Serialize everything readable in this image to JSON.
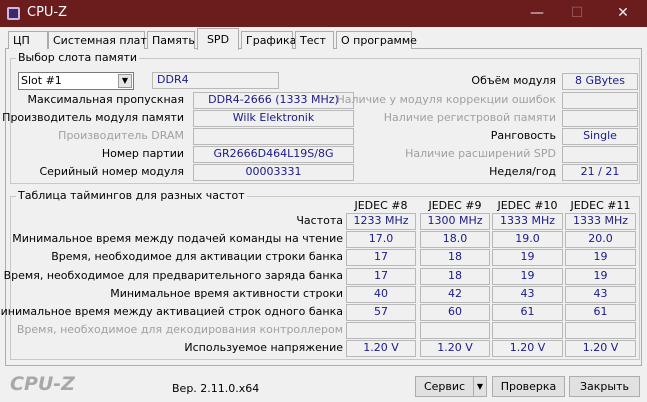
{
  "window": {
    "title": "CPU-Z",
    "minimize": "—",
    "maximize": "☐",
    "close": "✕"
  },
  "tabs": [
    "ЦП",
    "Системная плата",
    "Память",
    "SPD",
    "Графика",
    "Тест",
    "О программе"
  ],
  "active_tab": "SPD",
  "slot_group": {
    "title": "Выбор слота памяти",
    "slot_selected": "Slot #1",
    "memory_type": "DDR4",
    "left": [
      {
        "label": "Максимальная пропускная",
        "value": "DDR4-2666 (1333 MHz)",
        "disabled": false
      },
      {
        "label": "Производитель модуля памяти",
        "value": "Wilk Elektronik",
        "disabled": false
      },
      {
        "label": "Производитель DRAM",
        "value": "",
        "disabled": true
      },
      {
        "label": "Номер партии",
        "value": "GR2666D464L19S/8G",
        "disabled": false
      },
      {
        "label": "Серийный номер модуля",
        "value": "00003331",
        "disabled": false
      }
    ],
    "right": [
      {
        "label": "Объём модуля",
        "value": "8 GBytes",
        "disabled": false
      },
      {
        "label": "Наличие у модуля коррекции ошибок",
        "value": "",
        "disabled": true
      },
      {
        "label": "Наличие регистровой памяти",
        "value": "",
        "disabled": true
      },
      {
        "label": "Ранговость",
        "value": "Single",
        "disabled": false
      },
      {
        "label": "Наличие расширений SPD",
        "value": "",
        "disabled": true
      },
      {
        "label": "Неделя/год",
        "value": "21 / 21",
        "disabled": false
      }
    ]
  },
  "timings": {
    "title": "Таблица таймингов для разных частот",
    "columns": [
      "JEDEC #8",
      "JEDEC #9",
      "JEDEC #10",
      "JEDEC #11"
    ],
    "rows": [
      {
        "label": "Частота",
        "values": [
          "1233 MHz",
          "1300 MHz",
          "1333 MHz",
          "1333 MHz"
        ],
        "disabled": false
      },
      {
        "label": "Минимальное время между подачей команды на чтение",
        "values": [
          "17.0",
          "18.0",
          "19.0",
          "20.0"
        ],
        "disabled": false
      },
      {
        "label": "Время, необходимое для активации строки банка",
        "values": [
          "17",
          "18",
          "19",
          "19"
        ],
        "disabled": false
      },
      {
        "label": "Время, необходимое для предварительного заряда банка",
        "values": [
          "17",
          "18",
          "19",
          "19"
        ],
        "disabled": false
      },
      {
        "label": "Минимальное время активности строки",
        "values": [
          "40",
          "42",
          "43",
          "43"
        ],
        "disabled": false
      },
      {
        "label": "Минимальное время между активацией строк одного банка",
        "values": [
          "57",
          "60",
          "61",
          "61"
        ],
        "disabled": false
      },
      {
        "label": "Время, необходимое для декодирования контроллером",
        "values": [
          "",
          "",
          "",
          ""
        ],
        "disabled": true
      },
      {
        "label": "Используемое напряжение",
        "values": [
          "1.20 V",
          "1.20 V",
          "1.20 V",
          "1.20 V"
        ],
        "disabled": false
      }
    ]
  },
  "footer": {
    "logo": "CPU-Z",
    "version": "Вер. 2.11.0.x64",
    "tools_label": "Сервис",
    "validate_label": "Проверка",
    "close_label": "Закрыть"
  }
}
